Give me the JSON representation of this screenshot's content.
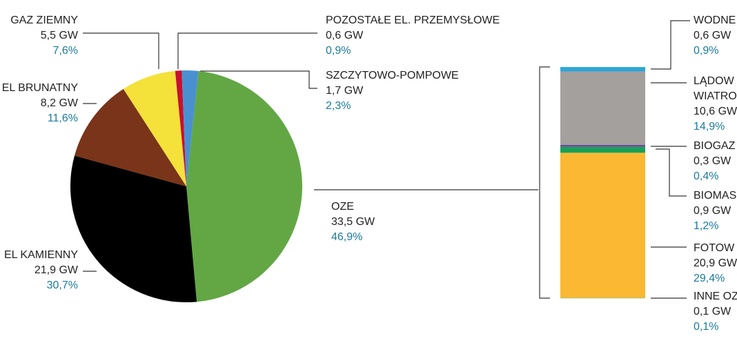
{
  "chart_data": [
    {
      "type": "pie",
      "unit_values_name": "pct",
      "categories": [
        "OZE",
        "EL KAMIENNY",
        "EL BRUNATNY",
        "GAZ ZIEMNY",
        "POZOSTAŁE EL. PRZEMYSŁOWE",
        "SZCZYTOWO-POMPOWE"
      ],
      "values": [
        46.9,
        30.7,
        11.6,
        7.6,
        0.9,
        2.3
      ],
      "value_labels": [
        "46,9%",
        "30,7%",
        "11,6%",
        "7,6%",
        "0,9%",
        "2,3%"
      ],
      "gw_values": [
        33.5,
        21.9,
        8.2,
        5.5,
        0.6,
        1.7
      ],
      "gw_value_labels": [
        "33,5 GW",
        "21,9 GW",
        "8,2 GW",
        "5,5 GW",
        "0,6 GW",
        "1,7 GW"
      ],
      "colors": [
        "#62a744",
        "#000000",
        "#7a3419",
        "#f4e13a",
        "#c8102e",
        "#4a90d0"
      ]
    },
    {
      "type": "stacked-bar",
      "categories": [
        [
          "INNE OZ"
        ],
        [
          "FOTOW"
        ],
        [
          "BIOMAS"
        ],
        [
          "BIOGAZ"
        ],
        [
          "LĄDOW",
          "WIATRO"
        ],
        [
          "WODNE"
        ]
      ],
      "values": [
        0.1,
        29.4,
        1.2,
        0.4,
        14.9,
        0.9
      ],
      "value_labels": [
        "0,1%",
        "29,4%",
        "1,2%",
        "0,4%",
        "14,9%",
        "0,9%"
      ],
      "gw_values": [
        0.1,
        20.9,
        0.9,
        0.3,
        10.6,
        0.6
      ],
      "gw_value_labels": [
        "0,1 GW",
        "20,9 GW",
        "0,9 GW",
        "0,3 GW",
        "10,6 GW",
        "0,6 GW"
      ],
      "colors": [
        "#8bc34a",
        "#fbb833",
        "#18a157",
        "#6b4a9a",
        "#a3a09d",
        "#2fa5d6"
      ]
    }
  ]
}
